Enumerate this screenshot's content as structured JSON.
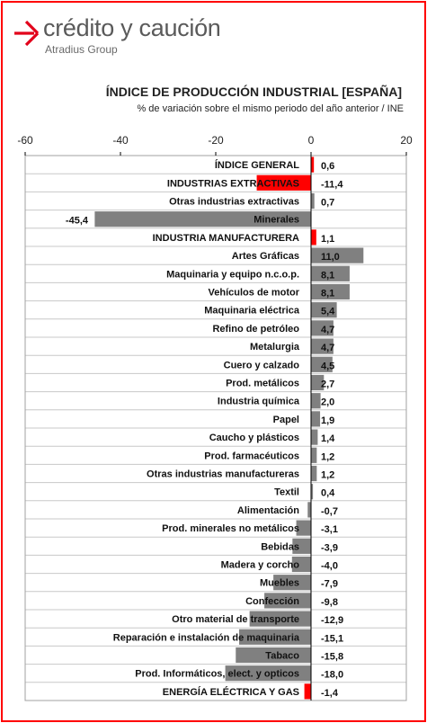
{
  "brand": {
    "name": "crédito y caución",
    "group": "Atradius Group",
    "accent": "#e2001a"
  },
  "chart_data": {
    "type": "bar",
    "orientation": "horizontal",
    "title": "ÍNDICE DE PRODUCCIÓN INDUSTRIAL [ESPAÑA]",
    "subtitle": "% de variación sobre el mismo periodo del año anterior / INE",
    "xlim": [
      -60,
      20
    ],
    "xticks": [
      -60,
      -40,
      -20,
      0,
      20
    ],
    "grid": true,
    "categories": [
      "ÍNDICE GENERAL",
      "INDUSTRIAS EXTRACTIVAS",
      "Otras industrias extractivas",
      "Minerales",
      "INDUSTRIA MANUFACTURERA",
      "Artes Gráficas",
      "Maquinaria y equipo n.c.o.p.",
      "Vehículos de motor",
      "Maquinaria eléctrica",
      "Refino de petróleo",
      "Metalurgia",
      "Cuero y calzado",
      "Prod. metálicos",
      "Industria química",
      "Papel",
      "Caucho y plásticos",
      "Prod. farmacéuticos",
      "Otras industrias manufactureras",
      "Textil",
      "Alimentación",
      "Prod. minerales no metálicos",
      "Bebidas",
      "Madera y corcho",
      "Muebles",
      "Confección",
      "Otro material de transporte",
      "Reparación e instalación de maquinaria",
      "Tabaco",
      "Prod. Informáticos, elect. y opticos",
      "ENERGÍA ELÉCTRICA Y GAS"
    ],
    "values": [
      0.6,
      -11.4,
      0.7,
      -45.4,
      1.1,
      11.0,
      8.1,
      8.1,
      5.4,
      4.7,
      4.7,
      4.5,
      2.7,
      2.0,
      1.9,
      1.4,
      1.2,
      1.2,
      0.4,
      -0.7,
      -3.1,
      -3.9,
      -4.0,
      -7.9,
      -9.8,
      -12.9,
      -15.1,
      -15.8,
      -18.0,
      -1.4
    ],
    "value_labels": [
      "0,6",
      "-11,4",
      "0,7",
      "-45,4",
      "1,1",
      "11,0",
      "8,1",
      "8,1",
      "5,4",
      "4,7",
      "4,7",
      "4,5",
      "2,7",
      "2,0",
      "1,9",
      "1,4",
      "1,2",
      "1,2",
      "0,4",
      "-0,7",
      "-3,1",
      "-3,9",
      "-4,0",
      "-7,9",
      "-9,8",
      "-12,9",
      "-15,1",
      "-15,8",
      "-18,0",
      "-1,4"
    ],
    "highlight": [
      true,
      true,
      false,
      false,
      true,
      false,
      false,
      false,
      false,
      false,
      false,
      false,
      false,
      false,
      false,
      false,
      false,
      false,
      false,
      false,
      false,
      false,
      false,
      false,
      false,
      false,
      false,
      false,
      false,
      true
    ],
    "colors": {
      "highlight": "#ff0000",
      "default": "#808080",
      "grid": "#c8c8c8",
      "axis": "#000000"
    }
  }
}
